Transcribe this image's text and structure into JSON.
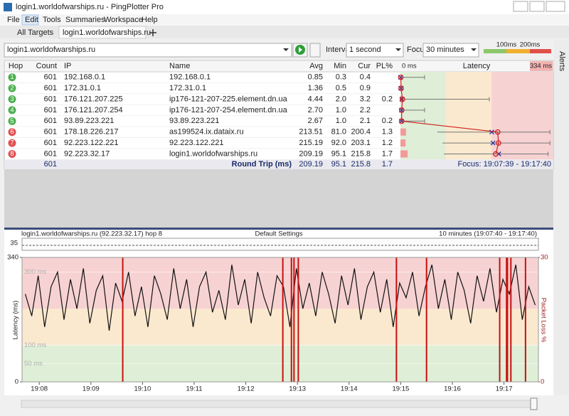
{
  "window": {
    "title": "login1.worldofwarships.ru - PingPlotter Pro"
  },
  "menu": [
    "File",
    "Edit",
    "Tools",
    "Summaries",
    "Workspace",
    "Help"
  ],
  "tabs": [
    "All Targets",
    "login1.worldofwarships.ru"
  ],
  "toolbar": {
    "target": "login1.worldofwarships.ru",
    "interval_label": "Interval",
    "interval": "1 second",
    "focus_label": "Focus",
    "focus": "30 minutes",
    "thresholds": [
      {
        "value": 100,
        "label": "100ms"
      },
      {
        "value": 200,
        "label": "200ms"
      }
    ]
  },
  "side_panel": "Alerts",
  "table": {
    "headers": [
      "Hop",
      "Count",
      "IP",
      "Name",
      "Avg",
      "Min",
      "Cur",
      "PL%",
      "Latency"
    ],
    "latency_scale": {
      "min_label": "0 ms",
      "max": {
        "value": 334,
        "label": "334 ms"
      }
    },
    "rows": [
      {
        "hop": "1",
        "status": "good",
        "count": "601",
        "ip": "192.168.0.1",
        "name": "192.168.0.1",
        "avg": "0.85",
        "min": "0.3",
        "cur": "0.4",
        "pl": null,
        "max_estimate": 53
      },
      {
        "hop": "2",
        "status": "good",
        "count": "601",
        "ip": "172.31.0.1",
        "name": "172.31.0.1",
        "avg": "1.36",
        "min": "0.5",
        "cur": "0.9",
        "pl": null,
        "max_estimate": 6
      },
      {
        "hop": "3",
        "status": "good",
        "count": "601",
        "ip": "176.121.207.225",
        "name": "ip176-121-207-225.element.dn.ua",
        "avg": "4.44",
        "min": "2.0",
        "cur": "3.2",
        "pl": "0.2",
        "max_estimate": 195
      },
      {
        "hop": "4",
        "status": "good",
        "count": "601",
        "ip": "176.121.207.254",
        "name": "ip176-121-207-254.element.dn.ua",
        "avg": "2.70",
        "min": "1.0",
        "cur": "2.2",
        "pl": null,
        "max_estimate": 53
      },
      {
        "hop": "5",
        "status": "good",
        "count": "601",
        "ip": "93.89.223.221",
        "name": "93.89.223.221",
        "avg": "2.67",
        "min": "1.0",
        "cur": "2.1",
        "pl": "0.2",
        "max_estimate": 53
      },
      {
        "hop": "6",
        "status": "bad",
        "count": "601",
        "ip": "178.18.226.217",
        "name": "as199524.ix.dataix.ru",
        "avg": "213.51",
        "min": "81.0",
        "cur": "200.4",
        "pl": "1.3",
        "max_estimate": 328
      },
      {
        "hop": "7",
        "status": "bad",
        "count": "601",
        "ip": "92.223.122.221",
        "name": "92.223.122.221",
        "avg": "215.19",
        "min": "92.0",
        "cur": "203.1",
        "pl": "1.2",
        "max_estimate": 328
      },
      {
        "hop": "8",
        "status": "bad",
        "count": "601",
        "ip": "92.223.32.17",
        "name": "login1.worldofwarships.ru",
        "avg": "209.19",
        "min": "95.1",
        "cur": "215.8",
        "pl": "1.7",
        "max_estimate": 324
      }
    ],
    "summary": {
      "count": "601",
      "label": "Round Trip (ms)",
      "avg": "209.19",
      "min": "95.1",
      "cur": "215.8",
      "pl": "1.7",
      "focus": "Focus: 19:07:39 - 19:17:40"
    }
  },
  "graph": {
    "header_left": "login1.worldofwarships.ru (92.223.32.17) hop 8",
    "header_center": "Default Settings",
    "header_right": "10 minutes (19:07:40 - 19:17:40)",
    "overview_label": "35",
    "y_title": "Latency (ms)",
    "y2_title": "Packet Loss %",
    "ylim": [
      0,
      340
    ],
    "yticks": [
      0,
      340
    ],
    "y2lim": [
      0,
      30
    ],
    "y2ticks": [
      0,
      30
    ],
    "inner_ticks": [
      {
        "value": 300,
        "label": "300 ms"
      },
      {
        "value": 100,
        "label": "100 ms"
      },
      {
        "value": 50,
        "label": "50 ms"
      }
    ],
    "xlim": [
      0,
      600
    ],
    "xticks": [
      {
        "value": 20,
        "label": "19:08"
      },
      {
        "value": 80,
        "label": "19:09"
      },
      {
        "value": 140,
        "label": "19:10"
      },
      {
        "value": 200,
        "label": "19:11"
      },
      {
        "value": 260,
        "label": "19:12"
      },
      {
        "value": 320,
        "label": "19:13"
      },
      {
        "value": 380,
        "label": "19:14"
      },
      {
        "value": 440,
        "label": "19:15"
      },
      {
        "value": 500,
        "label": "19:16"
      },
      {
        "value": 560,
        "label": "19:17"
      }
    ],
    "latency": [
      240,
      180,
      290,
      150,
      260,
      300,
      170,
      280,
      200,
      310,
      160,
      250,
      290,
      140,
      270,
      220,
      300,
      180,
      260,
      150,
      290,
      240,
      170,
      310,
      200,
      280,
      150,
      260,
      300,
      190,
      250,
      170,
      320,
      210,
      280,
      160,
      300,
      230,
      180,
      290,
      260,
      150,
      310,
      200,
      270,
      180,
      300,
      240,
      160,
      290,
      210,
      310,
      170,
      260,
      300,
      190,
      280,
      150,
      270,
      230,
      300,
      180,
      260,
      320,
      200,
      280,
      170,
      300,
      250,
      160,
      290,
      220,
      310,
      190,
      280,
      240,
      320,
      170,
      260,
      210
    ],
    "loss_events": [
      117,
      303,
      313,
      316,
      321,
      435,
      470,
      555,
      563,
      564,
      568,
      585
    ]
  }
}
